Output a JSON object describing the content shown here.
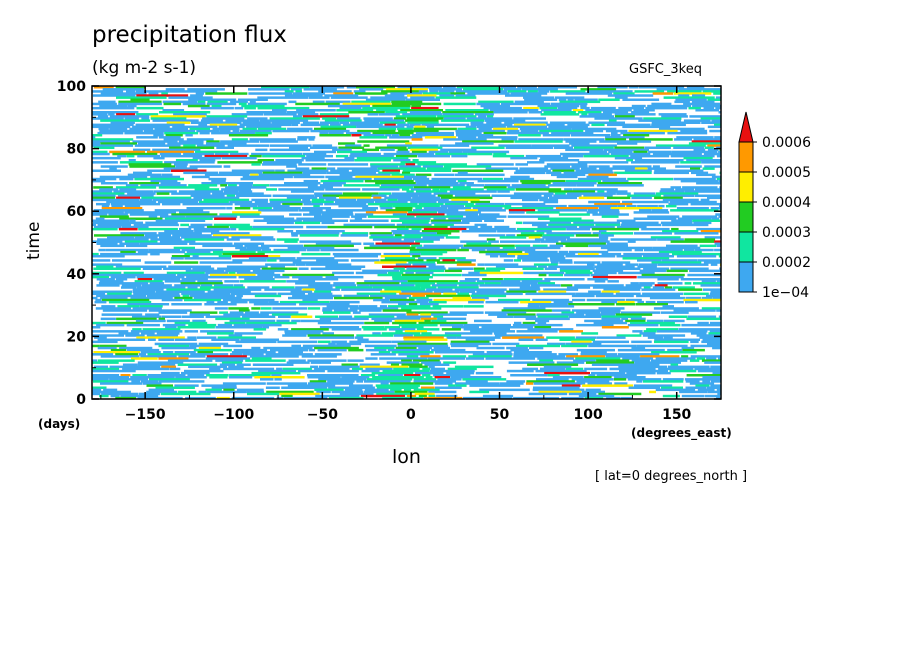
{
  "chart_data": {
    "type": "heatmap",
    "title": "precipitation flux",
    "units": "(kg m-2 s-1)",
    "source": "GSFC_3keq",
    "xlabel": "lon",
    "x_unit": "(degrees_east)",
    "ylabel": "time",
    "y_unit": "(days)",
    "annotation": "[ lat=0 degrees_north ]",
    "xlim": [
      -180,
      175
    ],
    "ylim": [
      0,
      100
    ],
    "x_ticks": [
      -150,
      -100,
      -50,
      0,
      50,
      100,
      150
    ],
    "x_tick_labels": [
      "−150",
      "−100",
      "−50",
      "0",
      "50",
      "100",
      "150"
    ],
    "y_ticks": [
      0,
      20,
      40,
      60,
      80,
      100
    ],
    "y_tick_labels": [
      "0",
      "20",
      "40",
      "60",
      "80",
      "100"
    ],
    "grid": false,
    "colorbar": {
      "levels": [
        0.0001,
        0.0002,
        0.0003,
        0.0004,
        0.0005,
        0.0006
      ],
      "level_labels": [
        "1e−04",
        "0.0002",
        "0.0003",
        "0.0004",
        "0.0005",
        "0.0006"
      ],
      "colors": [
        "#3ea8f0",
        "#10e6a0",
        "#22cc22",
        "#ffee00",
        "#ff9900",
        "#e81010"
      ],
      "extend": "max"
    }
  }
}
